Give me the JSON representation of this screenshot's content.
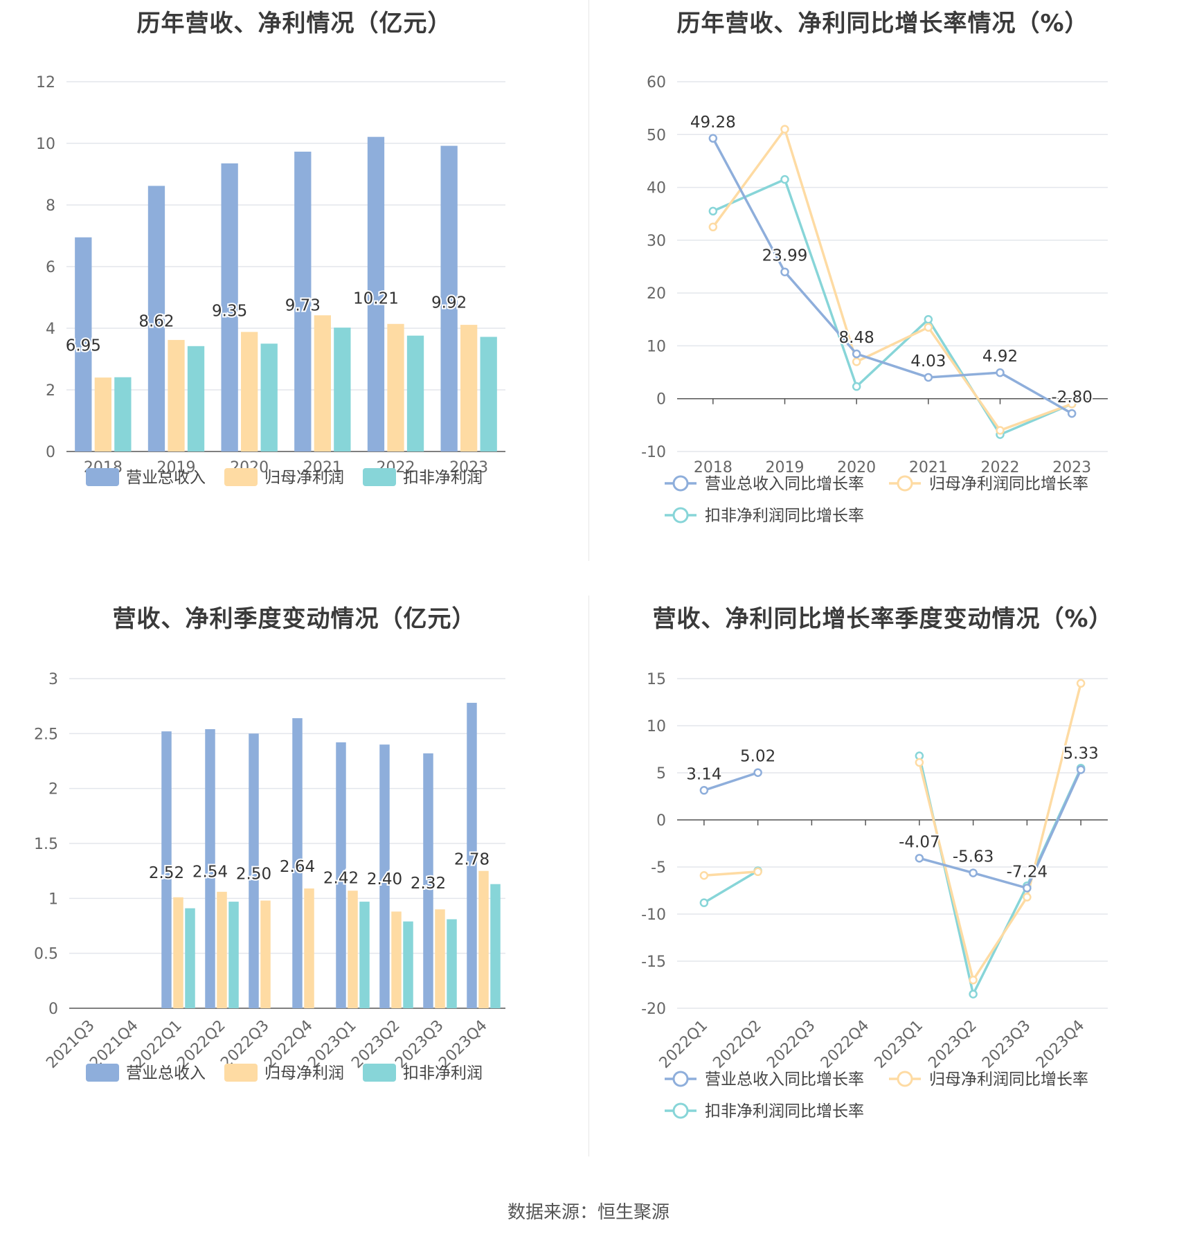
{
  "footer": {
    "source": "数据来源：恒生聚源"
  },
  "colors": {
    "revenue": "#8eaedb",
    "net_profit": "#fedba3",
    "deducted_profit": "#87d5d8"
  },
  "chart_data": [
    {
      "id": "annual-amounts",
      "type": "bar",
      "title": "历年营收、净利情况（亿元）",
      "categories": [
        "2018",
        "2019",
        "2020",
        "2021",
        "2022",
        "2023"
      ],
      "ylim": [
        0,
        12
      ],
      "yticks": [
        0,
        2,
        4,
        6,
        8,
        10,
        12
      ],
      "grid": true,
      "legend_position": "bottom",
      "series": [
        {
          "name": "营业总收入",
          "values": [
            6.95,
            8.62,
            9.35,
            9.73,
            10.21,
            9.92
          ],
          "labels": [
            "6.95",
            "8.62",
            "9.35",
            "9.73",
            "10.21",
            "9.92"
          ]
        },
        {
          "name": "归母净利润",
          "values": [
            2.4,
            3.62,
            3.88,
            4.42,
            4.14,
            4.11
          ]
        },
        {
          "name": "扣非净利润",
          "values": [
            2.41,
            3.42,
            3.5,
            4.02,
            3.76,
            3.72
          ]
        }
      ]
    },
    {
      "id": "annual-growth",
      "type": "line",
      "title": "历年营收、净利同比增长率情况（%）",
      "categories": [
        "2018",
        "2019",
        "2020",
        "2021",
        "2022",
        "2023"
      ],
      "ylim": [
        -10,
        60
      ],
      "yticks": [
        -10,
        0,
        10,
        20,
        30,
        40,
        50,
        60
      ],
      "grid": true,
      "legend_position": "bottom",
      "series": [
        {
          "name": "营业总收入同比增长率",
          "values": [
            49.28,
            23.99,
            8.48,
            4.03,
            4.92,
            -2.8
          ],
          "labels": [
            "49.28",
            "23.99",
            "8.48",
            "4.03",
            "4.92",
            "-2.80"
          ]
        },
        {
          "name": "归母净利润同比增长率",
          "values": [
            32.5,
            51.0,
            7.0,
            13.5,
            -6.0,
            -1.0
          ]
        },
        {
          "name": "扣非净利润同比增长率",
          "values": [
            35.5,
            41.5,
            2.3,
            15.0,
            -6.8,
            -1.0
          ]
        }
      ]
    },
    {
      "id": "quarterly-amounts",
      "type": "bar",
      "title": "营收、净利季度变动情况（亿元）",
      "categories": [
        "2021Q3",
        "2021Q4",
        "2022Q1",
        "2022Q2",
        "2022Q3",
        "2022Q4",
        "2023Q1",
        "2023Q2",
        "2023Q3",
        "2023Q4"
      ],
      "ylim": [
        0,
        3
      ],
      "yticks": [
        "0",
        "0.5",
        "1",
        "1.5",
        "2",
        "2.5",
        "3"
      ],
      "grid": true,
      "legend_position": "bottom",
      "series": [
        {
          "name": "营业总收入",
          "values": [
            null,
            null,
            2.52,
            2.54,
            2.5,
            2.64,
            2.42,
            2.4,
            2.32,
            2.78
          ],
          "labels": [
            null,
            null,
            "2.52",
            "2.54",
            "2.50",
            "2.64",
            "2.42",
            "2.40",
            "2.32",
            "2.78"
          ]
        },
        {
          "name": "归母净利润",
          "values": [
            null,
            null,
            1.01,
            1.06,
            0.98,
            1.09,
            1.07,
            0.88,
            0.9,
            1.25
          ]
        },
        {
          "name": "扣非净利润",
          "values": [
            null,
            null,
            0.91,
            0.97,
            null,
            null,
            0.97,
            0.79,
            0.81,
            1.13
          ]
        }
      ]
    },
    {
      "id": "quarterly-growth",
      "type": "line",
      "title": "营收、净利同比增长率季度变动情况（%）",
      "categories": [
        "2022Q1",
        "2022Q2",
        "2022Q3",
        "2022Q4",
        "2023Q1",
        "2023Q2",
        "2023Q3",
        "2023Q4"
      ],
      "ylim": [
        -20,
        15
      ],
      "yticks": [
        -20,
        -15,
        -10,
        -5,
        0,
        5,
        10,
        15
      ],
      "grid": true,
      "legend_position": "bottom",
      "series": [
        {
          "name": "营业总收入同比增长率",
          "values": [
            3.14,
            5.02,
            null,
            null,
            -4.07,
            -5.63,
            -7.24,
            5.33
          ],
          "labels": [
            "3.14",
            "5.02",
            null,
            null,
            "-4.07",
            "-5.63",
            "-7.24",
            "5.33"
          ]
        },
        {
          "name": "归母净利润同比增长率",
          "values": [
            -5.9,
            -5.5,
            null,
            null,
            6.1,
            -17.0,
            -8.2,
            14.5
          ]
        },
        {
          "name": "扣非净利润同比增长率",
          "values": [
            -8.8,
            -5.4,
            null,
            null,
            6.8,
            -18.5,
            -7.0,
            5.5
          ]
        }
      ]
    }
  ]
}
